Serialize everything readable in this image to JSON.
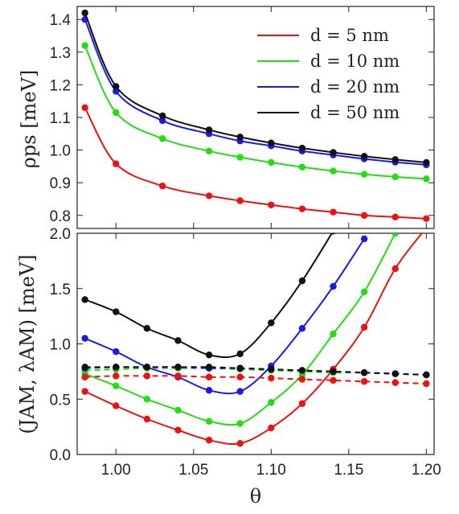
{
  "chart_data": [
    {
      "type": "line",
      "ylabel": "ρps [meV]",
      "xlabel": "",
      "xlim": [
        0.975,
        1.205
      ],
      "ylim": [
        0.76,
        1.44
      ],
      "yticks": [
        "0.8",
        "0.9",
        "1.0",
        "1.1",
        "1.2",
        "1.3",
        "1.4"
      ],
      "legend": {
        "placement": "top-right"
      },
      "x": [
        0.98,
        1.0,
        1.03,
        1.06,
        1.08,
        1.1,
        1.12,
        1.14,
        1.16,
        1.18,
        1.2
      ],
      "series": [
        {
          "name": "d = 5 nm",
          "color": "#ee1111",
          "values": [
            1.13,
            0.958,
            0.89,
            0.86,
            0.845,
            0.832,
            0.82,
            0.81,
            0.8,
            0.795,
            0.79
          ]
        },
        {
          "name": "d = 10 nm",
          "color": "#22dd11",
          "values": [
            1.32,
            1.115,
            1.035,
            0.997,
            0.978,
            0.962,
            0.948,
            0.936,
            0.926,
            0.918,
            0.912
          ]
        },
        {
          "name": "d = 20 nm",
          "color": "#1a1aee",
          "values": [
            1.4,
            1.18,
            1.09,
            1.05,
            1.028,
            1.013,
            0.997,
            0.985,
            0.973,
            0.963,
            0.955
          ]
        },
        {
          "name": "d = 50 nm",
          "color": "#111111",
          "values": [
            1.42,
            1.195,
            1.105,
            1.062,
            1.04,
            1.022,
            1.006,
            0.993,
            0.981,
            0.971,
            0.962
          ]
        }
      ]
    },
    {
      "type": "line",
      "ylabel": "(JAM, λAM) [meV]",
      "xlabel": "θ",
      "xlim": [
        0.975,
        1.205
      ],
      "ylim": [
        0.0,
        2.0
      ],
      "xticks": [
        "1.00",
        "1.05",
        "1.10",
        "1.15",
        "1.20"
      ],
      "yticks": [
        "0.0",
        "0.5",
        "1.0",
        "1.5",
        "2.0"
      ],
      "x": [
        0.98,
        1.0,
        1.02,
        1.04,
        1.06,
        1.08,
        1.1,
        1.12,
        1.14,
        1.16,
        1.18,
        1.2
      ],
      "series": [
        {
          "color": "#ee1111",
          "style": "solid",
          "values": [
            0.57,
            0.44,
            0.32,
            0.22,
            0.13,
            0.1,
            0.24,
            0.46,
            0.77,
            1.15,
            1.68,
            2.05
          ]
        },
        {
          "color": "#22dd11",
          "style": "solid",
          "values": [
            0.73,
            0.62,
            0.5,
            0.4,
            0.3,
            0.28,
            0.47,
            0.72,
            1.09,
            1.47,
            2.0,
            null
          ]
        },
        {
          "color": "#1a1aee",
          "style": "solid",
          "values": [
            1.05,
            0.93,
            0.79,
            0.7,
            0.58,
            0.57,
            0.8,
            1.14,
            1.52,
            1.95,
            null,
            null
          ]
        },
        {
          "color": "#111111",
          "style": "solid",
          "values": [
            1.4,
            1.29,
            1.14,
            1.03,
            0.9,
            0.91,
            1.19,
            1.57,
            2.02,
            null,
            null,
            null
          ]
        },
        {
          "color": "#ee1111",
          "style": "dashed",
          "values": [
            0.7,
            0.71,
            0.71,
            0.71,
            0.7,
            0.7,
            0.69,
            0.68,
            0.67,
            0.66,
            0.65,
            0.64
          ]
        },
        {
          "color": "#22dd11",
          "style": "dashed",
          "values": [
            0.76,
            0.77,
            0.78,
            0.78,
            0.78,
            0.77,
            0.76,
            0.75,
            0.74,
            0.74,
            0.73,
            0.72
          ]
        },
        {
          "color": "#1a1aee",
          "style": "dashed",
          "values": [
            0.78,
            0.79,
            0.79,
            0.79,
            0.78,
            0.78,
            0.77,
            0.76,
            0.75,
            0.74,
            0.73,
            0.72
          ]
        },
        {
          "color": "#111111",
          "style": "dashed",
          "values": [
            0.79,
            0.79,
            0.79,
            0.79,
            0.79,
            0.78,
            0.77,
            0.76,
            0.75,
            0.74,
            0.73,
            0.72
          ]
        }
      ]
    }
  ]
}
